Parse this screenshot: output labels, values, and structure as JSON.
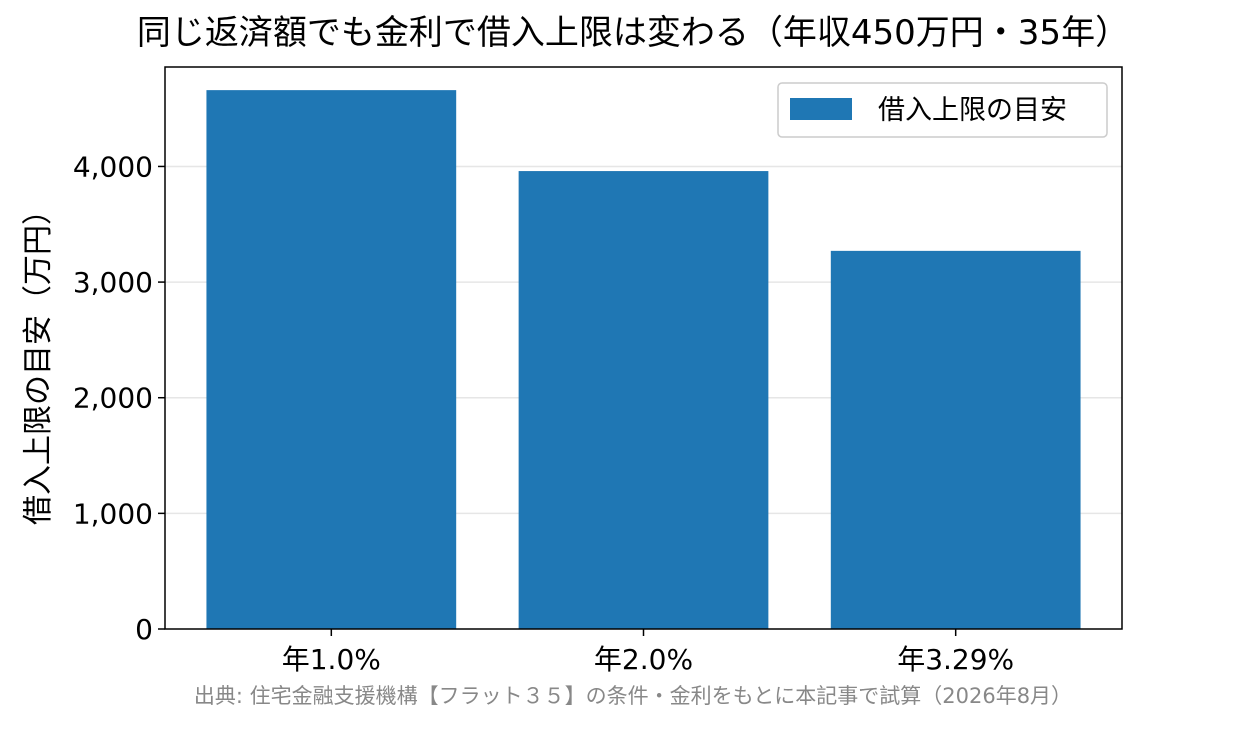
{
  "chart_data": {
    "type": "bar",
    "title": "同じ返済額でも金利で借入上限は変わる（年収450万円・35年）",
    "xlabel": "",
    "ylabel": "借入上限の目安（万円）",
    "categories": [
      "年1.0%",
      "年2.0%",
      "年3.29%"
    ],
    "series": [
      {
        "name": "借入上限の目安",
        "values": [
          4660,
          3960,
          3270
        ]
      }
    ],
    "ylim": [
      0,
      4860
    ],
    "yticks": [
      0,
      1000,
      2000,
      3000,
      4000
    ],
    "ytick_labels": [
      "0",
      "1,000",
      "2,000",
      "3,000",
      "4,000"
    ],
    "grid": "horizontal",
    "legend_position": "top-right",
    "colors": {
      "bar": "#1f77b4",
      "grid": "#e6e6e6",
      "axis": "#000000",
      "source_text": "#888888"
    },
    "source_note": "出典: 住宅金融支援機構【フラット３５】の条件・金利をもとに本記事で試算（2026年8月）"
  }
}
